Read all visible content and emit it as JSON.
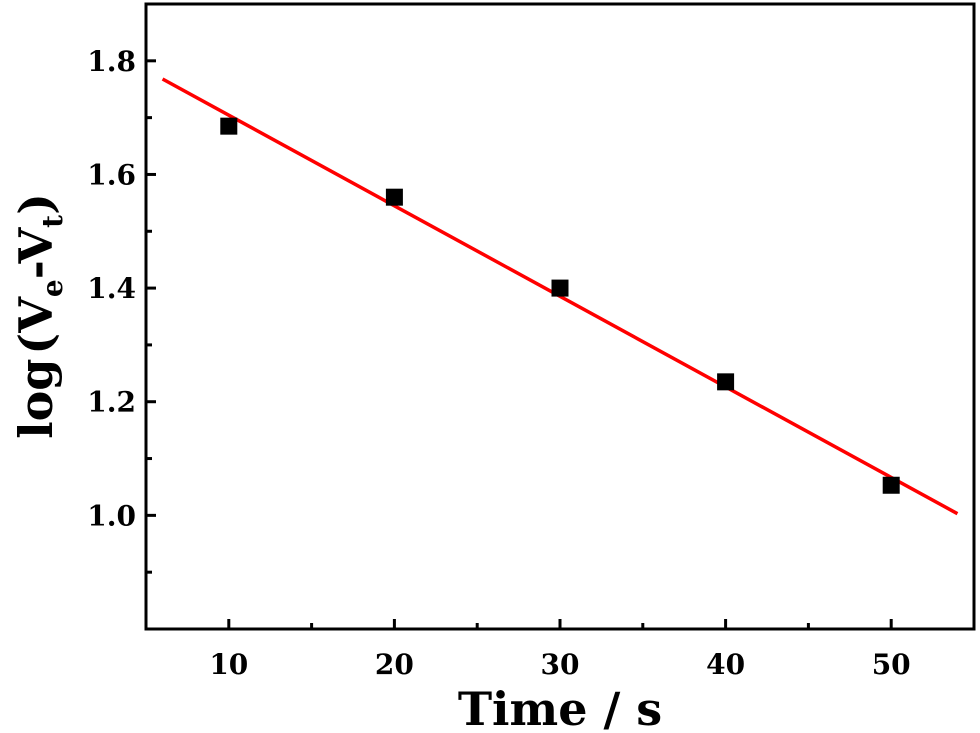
{
  "chart_data": {
    "type": "scatter",
    "xlabel": "Time / s",
    "ylabel": {
      "prefix": "log",
      "open": "(",
      "v1": "V",
      "sub1": "e",
      "dash": "-",
      "v2": "V",
      "sub2": "t",
      "close": ")"
    },
    "xlim": [
      5,
      55
    ],
    "ylim": [
      0.8,
      1.9
    ],
    "xticks": [
      "10",
      "20",
      "30",
      "40",
      "50"
    ],
    "yticks": [
      "1.0",
      "1.2",
      "1.4",
      "1.6",
      "1.8"
    ],
    "xtick_values": [
      10,
      20,
      30,
      40,
      50
    ],
    "ytick_values": [
      1.0,
      1.2,
      1.4,
      1.6,
      1.8
    ],
    "x_minor_tick_values": [
      5,
      15,
      25,
      35,
      45,
      55
    ],
    "y_minor_tick_values": [
      0.9,
      1.1,
      1.3,
      1.5,
      1.7
    ],
    "grid": false,
    "series": [
      {
        "marker": "square",
        "color": "#000000",
        "x": [
          10,
          20,
          30,
          40,
          50
        ],
        "y": [
          1.685,
          1.56,
          1.4,
          1.235,
          1.053
        ]
      }
    ],
    "fit_line": {
      "color": "#ff0000",
      "x": [
        6,
        54
      ],
      "y": [
        1.768,
        1.003
      ]
    }
  }
}
